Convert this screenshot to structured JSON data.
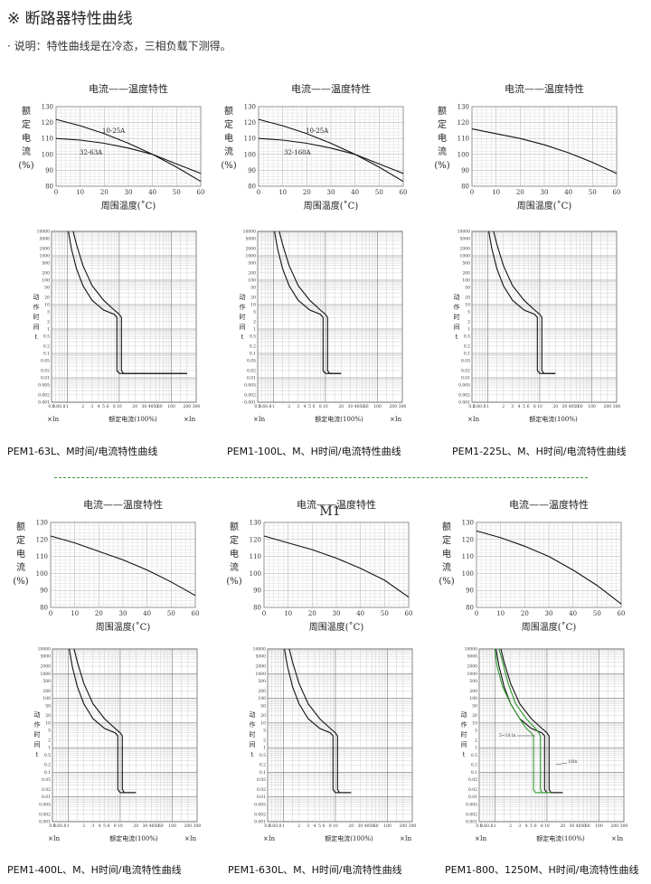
{
  "header": {
    "title": "※ 断路器特性曲线",
    "note": "· 说明：特性曲线是在冷态，三相负载下测得。"
  },
  "colors": {
    "separator": "#3a9a3a",
    "line": "#111111",
    "green": "#2e9a2e"
  },
  "stray_label": "M1",
  "chart_data": [
    {
      "type": "line",
      "kind": "temperature",
      "title": "电流——温度特性",
      "xlabel": "周围温度(˚C)",
      "ylabel_chars": [
        "额",
        "定",
        "电",
        "流",
        "(%)"
      ],
      "xlim": [
        0,
        60
      ],
      "ylim": [
        80,
        130
      ],
      "xticks": [
        0,
        10,
        20,
        30,
        40,
        50,
        60
      ],
      "yticks": [
        80,
        90,
        100,
        110,
        120,
        130
      ],
      "series": [
        {
          "name": "10-25A",
          "x": [
            0,
            10,
            20,
            30,
            40,
            50,
            60
          ],
          "y": [
            122,
            118,
            113,
            107,
            100,
            92,
            83
          ]
        },
        {
          "name": "32-63A",
          "x": [
            0,
            10,
            20,
            30,
            40,
            50,
            60
          ],
          "y": [
            110,
            109,
            107,
            104,
            100,
            94,
            88
          ]
        }
      ]
    },
    {
      "type": "line",
      "kind": "temperature",
      "title": "电流——温度特性",
      "xlabel": "周围温度(˚C)",
      "ylabel_chars": [
        "额",
        "定",
        "电",
        "流",
        "(%)"
      ],
      "xlim": [
        0,
        60
      ],
      "ylim": [
        80,
        130
      ],
      "xticks": [
        0,
        10,
        20,
        30,
        40,
        50,
        60
      ],
      "yticks": [
        80,
        90,
        100,
        110,
        120,
        130
      ],
      "series": [
        {
          "name": "10-25A",
          "x": [
            0,
            10,
            20,
            30,
            40,
            50,
            60
          ],
          "y": [
            122,
            118,
            113,
            107,
            100,
            92,
            83
          ]
        },
        {
          "name": "32-160A",
          "x": [
            0,
            10,
            20,
            30,
            40,
            50,
            60
          ],
          "y": [
            110,
            109,
            107,
            104,
            100,
            94,
            88
          ]
        }
      ]
    },
    {
      "type": "line",
      "kind": "temperature",
      "title": "电流——温度特性",
      "xlabel": "周围温度(˚C)",
      "ylabel_chars": [
        "额",
        "定",
        "电",
        "流",
        "(%)"
      ],
      "xlim": [
        0,
        60
      ],
      "ylim": [
        80,
        130
      ],
      "xticks": [
        0,
        10,
        20,
        30,
        40,
        50,
        60
      ],
      "yticks": [
        80,
        90,
        100,
        110,
        120,
        130
      ],
      "series": [
        {
          "x": [
            0,
            10,
            20,
            30,
            40,
            50,
            60
          ],
          "y": [
            116,
            113,
            110,
            106,
            101,
            95,
            88
          ]
        }
      ]
    },
    {
      "type": "line",
      "kind": "temperature",
      "title": "电流——温度特性",
      "xlabel": "周围温度(˚C)",
      "ylabel_chars": [
        "额",
        "定",
        "电",
        "流",
        "(%)"
      ],
      "xlim": [
        0,
        60
      ],
      "ylim": [
        80,
        130
      ],
      "xticks": [
        0,
        10,
        20,
        30,
        40,
        50,
        60
      ],
      "yticks": [
        80,
        90,
        100,
        110,
        120,
        130
      ],
      "series": [
        {
          "x": [
            0,
            10,
            20,
            30,
            40,
            50,
            60
          ],
          "y": [
            122,
            118,
            113,
            108,
            102,
            95,
            87
          ]
        }
      ]
    },
    {
      "type": "line",
      "kind": "temperature",
      "title": "电流——温度特性",
      "xlabel": "周围温度(˚C)",
      "ylabel_chars": [
        "额",
        "定",
        "电",
        "流",
        "(%)"
      ],
      "xlim": [
        0,
        60
      ],
      "ylim": [
        80,
        130
      ],
      "xticks": [
        0,
        10,
        20,
        30,
        40,
        50,
        60
      ],
      "yticks": [
        80,
        90,
        100,
        110,
        120,
        130
      ],
      "series": [
        {
          "x": [
            0,
            10,
            20,
            30,
            40,
            50,
            60
          ],
          "y": [
            122,
            118,
            114,
            109,
            103,
            96,
            86
          ]
        }
      ]
    },
    {
      "type": "line",
      "kind": "temperature",
      "title": "电流——温度特性",
      "xlabel": "周围温度(˚C)",
      "ylabel_chars": [
        "额",
        "定",
        "电",
        "流",
        "(%)"
      ],
      "xlim": [
        0,
        60
      ],
      "ylim": [
        80,
        130
      ],
      "xticks": [
        0,
        10,
        20,
        30,
        40,
        50,
        60
      ],
      "yticks": [
        80,
        90,
        100,
        110,
        120,
        130
      ],
      "series": [
        {
          "x": [
            0,
            10,
            20,
            30,
            40,
            50,
            60
          ],
          "y": [
            125,
            121,
            116,
            110,
            102,
            93,
            82
          ]
        }
      ]
    },
    {
      "type": "line",
      "kind": "trip",
      "xlabel": "额定电流(100%)",
      "xunit_left": "×In",
      "xunit_right": "×In",
      "ylabel_chars": [
        "动",
        "作",
        "时",
        "间",
        "t"
      ],
      "xscale": "log",
      "yscale": "log",
      "xlim": [
        0.5,
        300
      ],
      "ylim": [
        0.001,
        10000
      ],
      "xticks": [
        "0.5",
        "0.6",
        "0.8",
        "1",
        "2",
        "3",
        "4",
        "5",
        "6",
        "8",
        "10",
        "20",
        "30",
        "40",
        "50",
        "60",
        "100",
        "200",
        "300"
      ],
      "yticks": [
        "0.001",
        "0.002",
        "0.005",
        "0.01",
        "0.02",
        "0.05",
        "0.1",
        "0.2",
        "0.5",
        "1",
        "2",
        "5",
        "10",
        "20",
        "50",
        "100",
        "200",
        "500",
        "1000",
        "2000",
        "5000",
        "10000"
      ],
      "caption": "PEM1-63L、M时间/电流特性曲线",
      "curves": [
        {
          "x": [
            1.05,
            1.2,
            1.5,
            2,
            3,
            5,
            8,
            9,
            9,
            10,
            20,
            200
          ],
          "y": [
            10000,
            2000,
            300,
            60,
            15,
            6,
            4,
            3,
            0.02,
            0.015,
            0.015,
            0.015
          ]
        },
        {
          "x": [
            1.3,
            1.5,
            2,
            3,
            5,
            8,
            10,
            11,
            11,
            12,
            20,
            200
          ],
          "y": [
            10000,
            3000,
            400,
            60,
            15,
            6,
            4,
            3,
            0.02,
            0.015,
            0.015,
            0.015
          ]
        }
      ]
    },
    {
      "type": "line",
      "kind": "trip",
      "xlabel": "额定电流(100%)",
      "xunit_left": "×In",
      "xunit_right": "×In",
      "ylabel_chars": [
        "动",
        "作",
        "时",
        "间",
        "t"
      ],
      "xscale": "log",
      "yscale": "log",
      "xlim": [
        0.5,
        300
      ],
      "ylim": [
        0.001,
        10000
      ],
      "xticks": [
        "0.5",
        "0.6",
        "0.8",
        "1",
        "2",
        "3",
        "4",
        "5",
        "6",
        "8",
        "10",
        "20",
        "30",
        "40",
        "50",
        "60",
        "100",
        "200",
        "300"
      ],
      "yticks": [
        "0.001",
        "0.002",
        "0.005",
        "0.01",
        "0.02",
        "0.05",
        "0.1",
        "0.2",
        "0.5",
        "1",
        "2",
        "5",
        "10",
        "20",
        "50",
        "100",
        "200",
        "500",
        "1000",
        "2000",
        "5000",
        "10000"
      ],
      "caption": "PEM1-100L、M、H时间/电流特性曲线",
      "curves": [
        {
          "x": [
            1.05,
            1.2,
            1.5,
            2,
            3,
            5,
            8,
            9,
            9,
            10,
            20
          ],
          "y": [
            10000,
            2000,
            300,
            60,
            15,
            6,
            4,
            3,
            0.02,
            0.015,
            0.015
          ]
        },
        {
          "x": [
            1.3,
            1.5,
            2,
            3,
            5,
            8,
            10,
            11,
            11,
            12,
            20
          ],
          "y": [
            10000,
            3000,
            400,
            60,
            15,
            6,
            4,
            3,
            0.02,
            0.015,
            0.015
          ]
        }
      ]
    },
    {
      "type": "line",
      "kind": "trip",
      "xlabel": "额定电流(100%)",
      "xunit_left": "×In",
      "xunit_right": "",
      "ylabel_chars": [
        "动",
        "作",
        "时",
        "间",
        "t"
      ],
      "xscale": "log",
      "yscale": "log",
      "xlim": [
        0.5,
        300
      ],
      "ylim": [
        0.001,
        10000
      ],
      "xticks": [
        "0.5",
        "0.6",
        "0.8",
        "1",
        "2",
        "3",
        "4",
        "5",
        "6",
        "8",
        "10",
        "20",
        "30",
        "40",
        "50",
        "60",
        "100",
        "200",
        "300"
      ],
      "yticks": [
        "0.001",
        "0.002",
        "0.005",
        "0.01",
        "0.02",
        "0.05",
        "0.1",
        "0.2",
        "0.5",
        "1",
        "2",
        "5",
        "10",
        "20",
        "50",
        "100",
        "200",
        "500",
        "1000",
        "2000",
        "5000",
        "10000"
      ],
      "caption": "PEM1-225L、M、H时间/电流特性曲线",
      "curves": [
        {
          "x": [
            1.05,
            1.2,
            1.5,
            2,
            3,
            5,
            8,
            9,
            9,
            10,
            20
          ],
          "y": [
            10000,
            2000,
            300,
            60,
            15,
            6,
            4,
            3,
            0.02,
            0.015,
            0.015
          ]
        },
        {
          "x": [
            1.3,
            1.5,
            2,
            3,
            5,
            8,
            10,
            11,
            11,
            12,
            20
          ],
          "y": [
            10000,
            3000,
            400,
            60,
            15,
            6,
            4,
            3,
            0.02,
            0.015,
            0.015
          ]
        }
      ]
    },
    {
      "type": "line",
      "kind": "trip",
      "xlabel": "额定电流(100%)",
      "xunit_left": "×In",
      "xunit_right": "×In",
      "ylabel_chars": [
        "动",
        "作",
        "时",
        "间",
        "t"
      ],
      "xscale": "log",
      "yscale": "log",
      "xlim": [
        0.5,
        300
      ],
      "ylim": [
        0.001,
        10000
      ],
      "xticks": [
        "0.5",
        "0.6",
        "0.8",
        "1",
        "2",
        "3",
        "4",
        "5",
        "6",
        "8",
        "10",
        "20",
        "30",
        "40",
        "50",
        "60",
        "100",
        "200",
        "300"
      ],
      "yticks": [
        "0.001",
        "0.002",
        "0.005",
        "0.01",
        "0.02",
        "0.05",
        "0.1",
        "0.2",
        "0.5",
        "1",
        "2",
        "5",
        "10",
        "20",
        "50",
        "100",
        "200",
        "500",
        "1000",
        "2000",
        "5000",
        "10000"
      ],
      "caption": "PEM1-400L、M、H时间/电流特性曲线",
      "curves": [
        {
          "x": [
            1.05,
            1.2,
            1.5,
            2,
            3,
            5,
            8,
            9,
            9,
            10,
            20
          ],
          "y": [
            10000,
            2000,
            300,
            60,
            15,
            6,
            4,
            3,
            0.02,
            0.015,
            0.015
          ]
        },
        {
          "x": [
            1.3,
            1.5,
            2,
            3,
            5,
            8,
            10,
            11,
            11,
            12,
            20
          ],
          "y": [
            10000,
            3000,
            400,
            60,
            15,
            6,
            4,
            3,
            0.02,
            0.015,
            0.015
          ]
        }
      ]
    },
    {
      "type": "line",
      "kind": "trip",
      "xlabel": "额定电流(100%)",
      "xunit_left": "×In",
      "xunit_right": "×In",
      "ylabel_chars": [
        "动",
        "作",
        "时",
        "间",
        "t"
      ],
      "xscale": "log",
      "yscale": "log",
      "xlim": [
        0.5,
        300
      ],
      "ylim": [
        0.001,
        10000
      ],
      "xticks": [
        "0.5",
        "0.6",
        "0.8",
        "1",
        "2",
        "3",
        "4",
        "5",
        "6",
        "8",
        "10",
        "20",
        "30",
        "40",
        "50",
        "60",
        "100",
        "200",
        "300"
      ],
      "yticks": [
        "0.001",
        "0.002",
        "0.005",
        "0.01",
        "0.02",
        "0.05",
        "0.1",
        "0.2",
        "0.5",
        "1",
        "2",
        "5",
        "10",
        "20",
        "50",
        "100",
        "200",
        "500",
        "1000",
        "2000",
        "5000",
        "10000"
      ],
      "caption": "PEM1-630L、M、H时间/电流特性曲线",
      "curves": [
        {
          "x": [
            1.05,
            1.2,
            1.5,
            2,
            3,
            5,
            8,
            9,
            9,
            10,
            20
          ],
          "y": [
            10000,
            2000,
            300,
            60,
            15,
            6,
            4,
            3,
            0.02,
            0.015,
            0.015
          ]
        },
        {
          "x": [
            1.3,
            1.5,
            2,
            3,
            5,
            8,
            10,
            11,
            11,
            12,
            20
          ],
          "y": [
            10000,
            3000,
            400,
            60,
            15,
            6,
            4,
            3,
            0.02,
            0.015,
            0.015
          ]
        }
      ]
    },
    {
      "type": "line",
      "kind": "trip",
      "xlabel": "额定电流(100%)",
      "xunit_left": "×In",
      "xunit_right": "×In",
      "ylabel_chars": [
        "动",
        "作",
        "时",
        "间",
        "t"
      ],
      "xscale": "log",
      "yscale": "log",
      "xlim": [
        0.5,
        300
      ],
      "ylim": [
        0.001,
        10000
      ],
      "xticks": [
        "0.5",
        "0.6",
        "0.8",
        "1",
        "2",
        "3",
        "4",
        "5",
        "6",
        "8",
        "10",
        "20",
        "30",
        "40",
        "50",
        "60",
        "100",
        "200",
        "300"
      ],
      "yticks": [
        "0.001",
        "0.002",
        "0.005",
        "0.01",
        "0.02",
        "0.05",
        "0.1",
        "0.2",
        "0.5",
        "1",
        "2",
        "5",
        "10",
        "20",
        "50",
        "100",
        "200",
        "500",
        "1000",
        "2000",
        "5000",
        "10000"
      ],
      "caption": "PEM1-800、1250M、H时间/电流特性曲线",
      "annotations": [
        "5~10 In",
        "10In"
      ],
      "curves": [
        {
          "x": [
            1.05,
            1.2,
            1.5,
            2,
            3,
            5,
            8,
            9,
            9,
            10,
            20
          ],
          "y": [
            10000,
            2000,
            300,
            60,
            15,
            6,
            4,
            3,
            0.02,
            0.015,
            0.015
          ]
        },
        {
          "x": [
            1.3,
            1.5,
            2,
            3,
            5,
            8,
            10,
            11,
            11,
            12,
            20
          ],
          "y": [
            10000,
            3000,
            400,
            60,
            15,
            6,
            4,
            3,
            0.02,
            0.015,
            0.015
          ]
        },
        {
          "color": "green",
          "x": [
            1.0,
            1.1,
            1.4,
            2,
            3,
            4,
            5,
            5.5,
            5.5,
            6,
            10
          ],
          "y": [
            10000,
            2000,
            300,
            60,
            15,
            6,
            4,
            3,
            0.02,
            0.015,
            0.015
          ]
        },
        {
          "color": "green",
          "x": [
            1.2,
            1.4,
            1.8,
            2.5,
            4,
            6,
            7,
            7.5,
            7.5,
            8,
            12
          ],
          "y": [
            10000,
            3000,
            400,
            60,
            15,
            6,
            4,
            3,
            0.02,
            0.015,
            0.015
          ]
        }
      ]
    }
  ]
}
